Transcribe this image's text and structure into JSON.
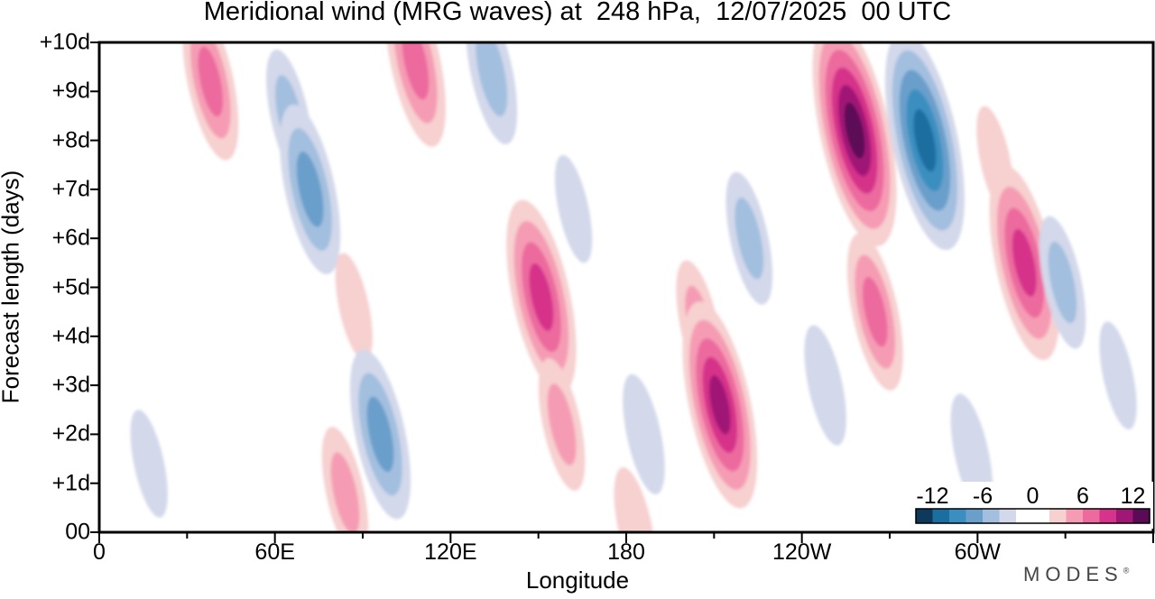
{
  "title": "Meridional wind (MRG waves) at  248 hPa,  12/07/2025  00 UTC",
  "brand": "MODES",
  "brand_mark": "®",
  "chart_data": {
    "type": "heatmap",
    "title": "Meridional wind (MRG waves) at  248 hPa,  12/07/2025  00 UTC",
    "xlabel": "Longitude",
    "ylabel": "Forecast length (days)",
    "x_ticks": [
      "0",
      "60E",
      "120E",
      "180",
      "120W",
      "60W"
    ],
    "x_tick_degrees_east": [
      0,
      60,
      120,
      180,
      240,
      300
    ],
    "x_range_degrees_east": [
      0,
      360
    ],
    "y_ticks": [
      "00",
      "+1d",
      "+2d",
      "+3d",
      "+4d",
      "+5d",
      "+6d",
      "+7d",
      "+8d",
      "+9d",
      "+10d"
    ],
    "y_range_days": [
      0,
      10
    ],
    "colorbar": {
      "tick_labels": [
        "-12",
        "-6",
        "0",
        "6",
        "12"
      ],
      "levels": [
        -14,
        -12,
        -10,
        -8,
        -6,
        -4,
        -2,
        0,
        2,
        4,
        6,
        8,
        10,
        12,
        14
      ],
      "colors": [
        "#0d3a5c",
        "#1a6ea0",
        "#3b8fc0",
        "#6a9fcb",
        "#a3bfdf",
        "#d3d8ea",
        "#ffffff",
        "#ffffff",
        "#f7d0d0",
        "#f59cb4",
        "#ec6a9e",
        "#d6338a",
        "#a01776",
        "#5b0a55"
      ]
    },
    "features": [
      {
        "lon": 17,
        "day": 1.4,
        "value": -3
      },
      {
        "lon": 38,
        "day": 9.2,
        "value": 7
      },
      {
        "lon": 65,
        "day": 8.5,
        "value": -5
      },
      {
        "lon": 72,
        "day": 7.0,
        "value": -8
      },
      {
        "lon": 84,
        "day": 0.8,
        "value": 5
      },
      {
        "lon": 87,
        "day": 4.6,
        "value": 3
      },
      {
        "lon": 96,
        "day": 2.0,
        "value": -8
      },
      {
        "lon": 108,
        "day": 9.6,
        "value": 8
      },
      {
        "lon": 134,
        "day": 9.4,
        "value": -6
      },
      {
        "lon": 151,
        "day": 4.8,
        "value": 10
      },
      {
        "lon": 158,
        "day": 2.2,
        "value": 5
      },
      {
        "lon": 162,
        "day": 6.6,
        "value": -3
      },
      {
        "lon": 183,
        "day": 0.1,
        "value": 4
      },
      {
        "lon": 186,
        "day": 2.0,
        "value": -4
      },
      {
        "lon": 205,
        "day": 4.2,
        "value": 5
      },
      {
        "lon": 212,
        "day": 2.6,
        "value": 11
      },
      {
        "lon": 222,
        "day": 6.0,
        "value": -5
      },
      {
        "lon": 248,
        "day": 3.0,
        "value": -4
      },
      {
        "lon": 258,
        "day": 8.2,
        "value": 13
      },
      {
        "lon": 265,
        "day": 4.5,
        "value": 7
      },
      {
        "lon": 282,
        "day": 8.0,
        "value": -12
      },
      {
        "lon": 298,
        "day": 1.6,
        "value": -4
      },
      {
        "lon": 306,
        "day": 7.6,
        "value": 3
      },
      {
        "lon": 316,
        "day": 5.5,
        "value": 10
      },
      {
        "lon": 329,
        "day": 5.1,
        "value": -5
      },
      {
        "lon": 348,
        "day": 3.2,
        "value": -3
      }
    ]
  }
}
